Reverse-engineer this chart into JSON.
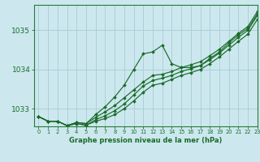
{
  "title": "Graphe pression niveau de la mer (hPa)",
  "background_color": "#cce8ee",
  "grid_color": "#aad0d8",
  "line_color": "#1a6b2a",
  "xlim": [
    -0.5,
    23
  ],
  "ylim": [
    1032.55,
    1035.65
  ],
  "yticks": [
    1033,
    1034,
    1035
  ],
  "xticks": [
    0,
    1,
    2,
    3,
    4,
    5,
    6,
    7,
    8,
    9,
    10,
    11,
    12,
    13,
    14,
    15,
    16,
    17,
    18,
    19,
    20,
    21,
    22,
    23
  ],
  "series_main": [
    1032.8,
    1032.68,
    1032.68,
    1032.57,
    1032.65,
    1032.62,
    1032.78,
    1032.92,
    1033.08,
    1033.28,
    1033.48,
    1033.68,
    1033.85,
    1033.88,
    1033.95,
    1034.05,
    1034.12,
    1034.2,
    1034.35,
    1034.52,
    1034.72,
    1034.92,
    1035.1,
    1035.48
  ],
  "series_bump": [
    1032.8,
    1032.68,
    1032.68,
    1032.57,
    1032.65,
    1032.62,
    1032.85,
    1033.05,
    1033.3,
    1033.6,
    1034.0,
    1034.4,
    1034.45,
    1034.62,
    1034.15,
    1034.05,
    1034.05,
    1034.1,
    1034.28,
    1034.45,
    1034.68,
    1034.88,
    1035.05,
    1035.42
  ],
  "series_low1": [
    1032.8,
    1032.68,
    1032.68,
    1032.57,
    1032.62,
    1032.58,
    1032.72,
    1032.82,
    1032.95,
    1033.12,
    1033.35,
    1033.58,
    1033.72,
    1033.78,
    1033.85,
    1033.95,
    1034.02,
    1034.1,
    1034.25,
    1034.42,
    1034.62,
    1034.82,
    1035.0,
    1035.38
  ],
  "series_low2": [
    1032.8,
    1032.68,
    1032.68,
    1032.57,
    1032.62,
    1032.58,
    1032.68,
    1032.75,
    1032.85,
    1033.0,
    1033.2,
    1033.42,
    1033.6,
    1033.65,
    1033.75,
    1033.85,
    1033.92,
    1034.0,
    1034.15,
    1034.32,
    1034.52,
    1034.72,
    1034.9,
    1035.28
  ]
}
